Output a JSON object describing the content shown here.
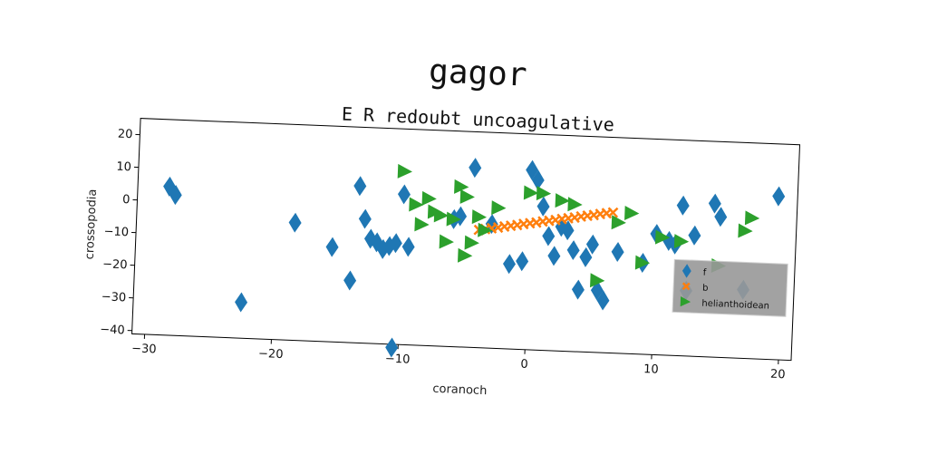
{
  "chart_data": {
    "type": "scatter",
    "title": "gagor",
    "subtitle": "E R redoubt uncoagulative",
    "xlabel": "coranoch",
    "ylabel": "crossopodia",
    "xlim": [
      -31,
      21
    ],
    "ylim": [
      -41,
      25
    ],
    "xticks": [
      -30,
      -20,
      -10,
      0,
      10,
      20
    ],
    "yticks": [
      20,
      10,
      0,
      -10,
      -20,
      -30,
      -40
    ],
    "grid": false,
    "legend_position": "right",
    "series": [
      {
        "name": "f",
        "marker": "diamond",
        "color": "#1f77b4",
        "points": [
          [
            -28.5,
            4.5
          ],
          [
            -28,
            2
          ],
          [
            -22.5,
            -30
          ],
          [
            -18.5,
            -5
          ],
          [
            -15.5,
            -12
          ],
          [
            -14,
            -22
          ],
          [
            -13.5,
            7
          ],
          [
            -13,
            -3
          ],
          [
            -12.5,
            -9
          ],
          [
            -12,
            -10
          ],
          [
            -11.5,
            -12
          ],
          [
            -11,
            -11
          ],
          [
            -10.5,
            -10
          ],
          [
            -10,
            5
          ],
          [
            -9.5,
            -11
          ],
          [
            -10.5,
            -42
          ],
          [
            -6,
            -2
          ],
          [
            -5.5,
            -1
          ],
          [
            -4.5,
            14
          ],
          [
            -3,
            -3
          ],
          [
            -1.5,
            -15
          ],
          [
            -0.5,
            -14
          ],
          [
            0,
            14
          ],
          [
            0.5,
            11
          ],
          [
            1,
            3
          ],
          [
            1.5,
            -6
          ],
          [
            2,
            -12
          ],
          [
            2.5,
            -3
          ],
          [
            3,
            -4
          ],
          [
            3.5,
            -10
          ],
          [
            4,
            -22
          ],
          [
            4.5,
            -12
          ],
          [
            5,
            -8
          ],
          [
            5.5,
            -22
          ],
          [
            6,
            -25
          ],
          [
            7,
            -10
          ],
          [
            9,
            -13
          ],
          [
            10,
            -4
          ],
          [
            11,
            -6
          ],
          [
            11.5,
            -7
          ],
          [
            12,
            5
          ],
          [
            13,
            -4
          ],
          [
            12.5,
            -21
          ],
          [
            14.5,
            6
          ],
          [
            15,
            2
          ],
          [
            17,
            -20
          ],
          [
            19.5,
            9
          ]
        ]
      },
      {
        "name": "b",
        "marker": "x",
        "color": "#ff7f0e",
        "points": [
          [
            -4,
            -5
          ],
          [
            -3.5,
            -4.6
          ],
          [
            -3,
            -4.3
          ],
          [
            -2.5,
            -4
          ],
          [
            -2,
            -3.6
          ],
          [
            -1.5,
            -3.3
          ],
          [
            -1,
            -3
          ],
          [
            -0.5,
            -2.6
          ],
          [
            0,
            -2.3
          ],
          [
            0.5,
            -2
          ],
          [
            1,
            -1.6
          ],
          [
            1.5,
            -1.3
          ],
          [
            2,
            -1
          ],
          [
            2.5,
            -0.6
          ],
          [
            3,
            -0.3
          ],
          [
            3.5,
            0
          ],
          [
            4,
            0.4
          ],
          [
            4.5,
            0.7
          ],
          [
            5,
            1
          ],
          [
            5.5,
            1.4
          ],
          [
            6,
            1.7
          ],
          [
            6.5,
            2
          ]
        ]
      },
      {
        "name": "helianthoidean",
        "marker": "triangle-right",
        "color": "#2ca02c",
        "points": [
          [
            -10,
            12
          ],
          [
            -9,
            2
          ],
          [
            -8.5,
            -4
          ],
          [
            -8,
            4
          ],
          [
            -7.5,
            0
          ],
          [
            -7,
            -1
          ],
          [
            -6.5,
            -9
          ],
          [
            -6,
            -2
          ],
          [
            -5.5,
            8
          ],
          [
            -5,
            5
          ],
          [
            -5,
            -13
          ],
          [
            -4.5,
            -9
          ],
          [
            -4,
            -1
          ],
          [
            -3.5,
            -5
          ],
          [
            -2.5,
            2
          ],
          [
            0,
            7
          ],
          [
            1,
            7
          ],
          [
            2.5,
            5
          ],
          [
            3.5,
            4
          ],
          [
            5.5,
            -19
          ],
          [
            7,
            -1
          ],
          [
            8,
            2
          ],
          [
            9,
            -13
          ],
          [
            10.5,
            -5
          ],
          [
            12,
            -6
          ],
          [
            15,
            -13
          ],
          [
            17,
            -2
          ],
          [
            17.5,
            2
          ]
        ]
      }
    ]
  }
}
